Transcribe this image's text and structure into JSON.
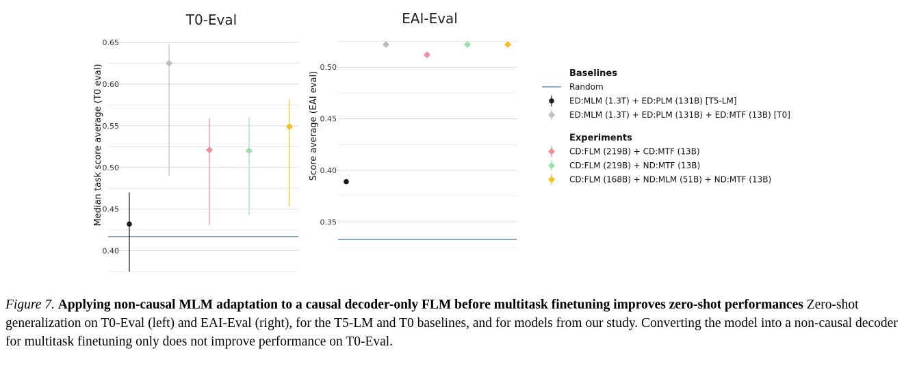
{
  "chart_data": [
    {
      "type": "scatter",
      "title": "T0-Eval",
      "xlabel": "",
      "ylabel": "Median task score average (T0 eval)",
      "ylim": [
        0.375,
        0.655
      ],
      "yticks": [
        0.4,
        0.45,
        0.5,
        0.55,
        0.6,
        0.65
      ],
      "ytick_labels": [
        "0.40",
        "0.45",
        "0.50",
        "0.55",
        "0.60",
        "0.65"
      ],
      "reference_line": {
        "series": "Random",
        "value": 0.417
      },
      "grid": true,
      "points": [
        {
          "series": "ED:MLM (1.3T) + ED:PLM (131B) [T5-LM]",
          "x": 1,
          "y": 0.432,
          "low": 0.375,
          "high": 0.47
        },
        {
          "series": "ED:MLM (1.3T) + ED:PLM (131B) + ED:MTF (13B) [T0]",
          "x": 2,
          "y": 0.625,
          "low": 0.49,
          "high": 0.648
        },
        {
          "series": "CD:FLM (219B) + CD:MTF (13B)",
          "x": 3,
          "y": 0.521,
          "low": 0.431,
          "high": 0.559
        },
        {
          "series": "CD:FLM (219B) + ND:MTF (13B)",
          "x": 4,
          "y": 0.52,
          "low": 0.443,
          "high": 0.56
        },
        {
          "series": "CD:FLM (168B) + ND:MLM (51B) + ND:MTF (13B)",
          "x": 5,
          "y": 0.549,
          "low": 0.453,
          "high": 0.582
        }
      ]
    },
    {
      "type": "scatter",
      "title": "EAI-Eval",
      "xlabel": "",
      "ylabel": "Score average (EAI eval)",
      "ylim": [
        0.325,
        0.528
      ],
      "yticks": [
        0.35,
        0.4,
        0.45,
        0.5
      ],
      "ytick_labels": [
        "0.35",
        "0.40",
        "0.45",
        "0.50"
      ],
      "reference_line": {
        "series": "Random",
        "value": 0.333
      },
      "grid": true,
      "points": [
        {
          "series": "ED:MLM (1.3T) + ED:PLM (131B) [T5-LM]",
          "x": 1,
          "y": 0.389
        },
        {
          "series": "ED:MLM (1.3T) + ED:PLM (131B) + ED:MTF (13B) [T0]",
          "x": 2,
          "y": 0.522
        },
        {
          "series": "CD:FLM (219B) + CD:MTF (13B)",
          "x": 3,
          "y": 0.512
        },
        {
          "series": "CD:FLM (219B) + ND:MTF (13B)",
          "x": 4,
          "y": 0.522
        },
        {
          "series": "CD:FLM (168B) + ND:MLM (51B) + ND:MTF (13B)",
          "x": 5,
          "y": 0.522
        }
      ]
    }
  ],
  "legend": {
    "placement": "right",
    "groups": [
      {
        "title": "Baselines",
        "items": [
          {
            "name": "Random",
            "marker": "line",
            "color": "#4a7fb5"
          },
          {
            "name": "ED:MLM (1.3T) + ED:PLM (131B) [T5-LM]",
            "marker": "dot",
            "color": "#1a1a1a"
          },
          {
            "name": "ED:MLM (1.3T) + ED:PLM (131B) + ED:MTF (13B) [T0]",
            "marker": "diamond",
            "color": "#bdbdbd"
          }
        ]
      },
      {
        "title": "Experiments",
        "items": [
          {
            "name": "CD:FLM (219B) + CD:MTF (13B)",
            "marker": "diamond",
            "color": "#f08c95"
          },
          {
            "name": "CD:FLM (219B) + ND:MTF (13B)",
            "marker": "diamond",
            "color": "#98e2a8"
          },
          {
            "name": "CD:FLM (168B) + ND:MLM (51B) + ND:MTF (13B)",
            "marker": "diamond",
            "color": "#f2c21b"
          }
        ]
      }
    ]
  },
  "colors": {
    "Random": "#4a7fb5",
    "ED:MLM (1.3T) + ED:PLM (131B) [T5-LM]": "#1a1a1a",
    "ED:MLM (1.3T) + ED:PLM (131B) + ED:MTF (13B) [T0]": "#bdbdbd",
    "CD:FLM (219B) + CD:MTF (13B)": "#f08c95",
    "CD:FLM (219B) + ND:MTF (13B)": "#98e2a8",
    "CD:FLM (168B) + ND:MLM (51B) + ND:MTF (13B)": "#f2c21b",
    "grid": "#d9d9d9"
  },
  "caption": {
    "label": "Figure 7.",
    "title": "Applying non-causal MLM adaptation to a causal decoder-only FLM before multitask finetuning improves zero-shot performances",
    "body": "Zero-shot generalization on T0-Eval (left) and EAI-Eval (right), for the T5-LM and T0 baselines, and for models from our study. Converting the model into a non-causal decoder for multitask finetuning only does not improve performance on T0-Eval."
  }
}
